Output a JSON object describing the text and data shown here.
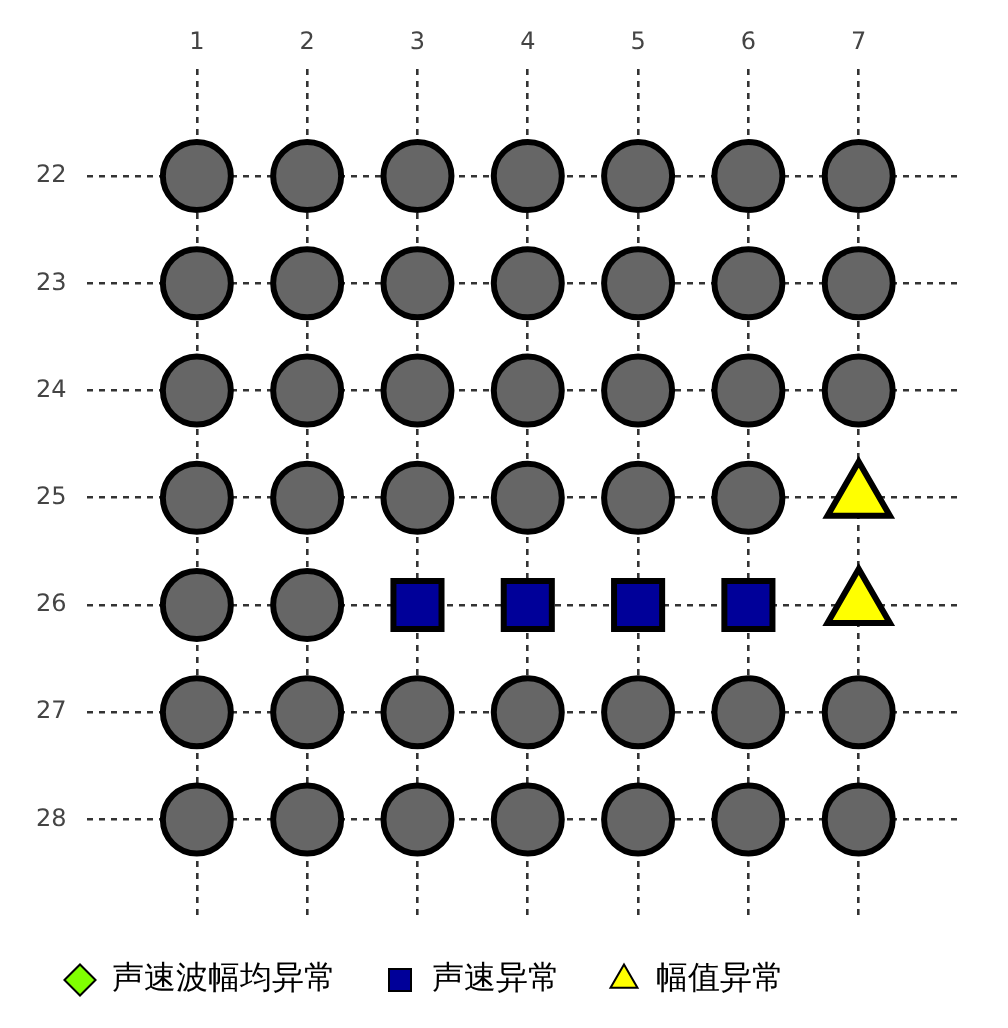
{
  "chart_data": {
    "type": "scatter",
    "xlim": [
      0,
      7.9
    ],
    "xticks": [
      1,
      2,
      3,
      4,
      5,
      6,
      7
    ],
    "ylim": [
      28.9,
      21
    ],
    "yticks": [
      22,
      23,
      24,
      25,
      26,
      27,
      28
    ],
    "grid": true,
    "legend": "bottom left",
    "series": [
      {
        "color": "#666666",
        "marker": "circle",
        "x": [
          1,
          2,
          3,
          4,
          5,
          6,
          7,
          1,
          2,
          3,
          4,
          5,
          6,
          7,
          1,
          2,
          3,
          4,
          5,
          6,
          7,
          1,
          2,
          3,
          4,
          5,
          6,
          1,
          2,
          1,
          2,
          3,
          4,
          5,
          6,
          7,
          1,
          2,
          3,
          4,
          5,
          6,
          7
        ],
        "values": [
          22,
          22,
          22,
          22,
          22,
          22,
          22,
          23,
          23,
          23,
          23,
          23,
          23,
          23,
          24,
          24,
          24,
          24,
          24,
          24,
          24,
          25,
          25,
          25,
          25,
          25,
          25,
          26,
          26,
          27,
          27,
          27,
          27,
          27,
          27,
          27,
          28,
          28,
          28,
          28,
          28,
          28,
          28
        ]
      },
      {
        "name": "声速波幅均异常",
        "color": "#80ff00",
        "marker": "diamond"
      },
      {
        "name": "声速异常",
        "color": "#000099",
        "marker": "square",
        "x": [
          3,
          4,
          5,
          6
        ],
        "values": [
          26,
          26,
          26,
          26
        ]
      },
      {
        "name": "幅值异常",
        "color": "#ffff00",
        "marker": "triangle",
        "x": [
          7,
          7
        ],
        "values": [
          25,
          26
        ]
      }
    ]
  }
}
